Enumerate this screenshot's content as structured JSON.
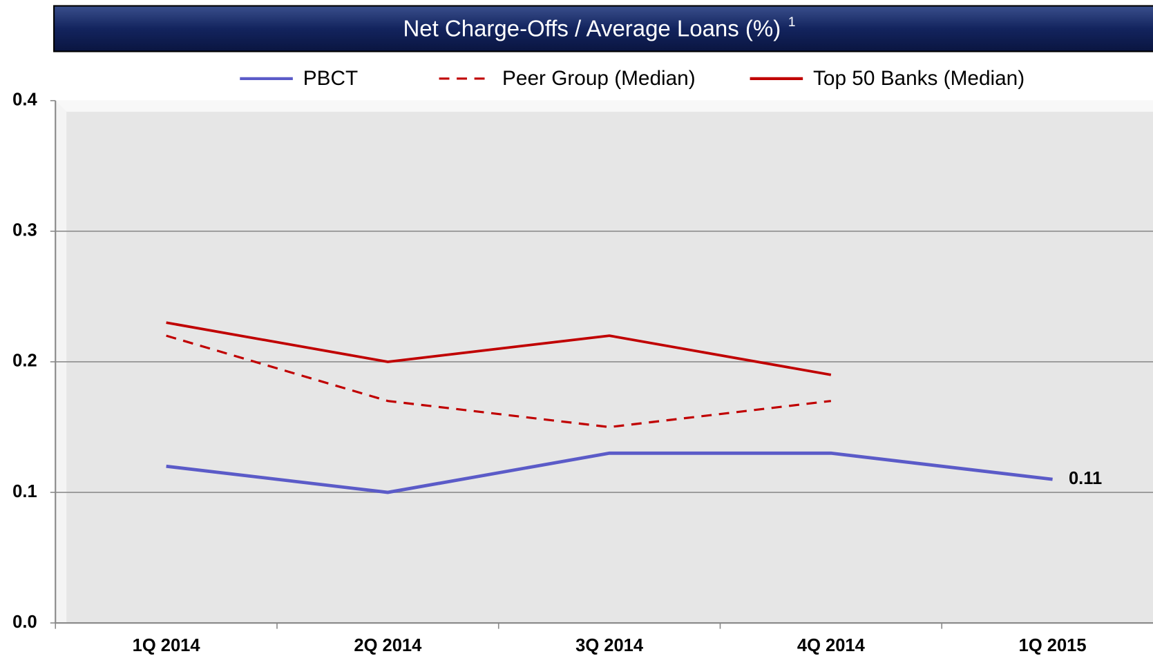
{
  "chart_data": {
    "type": "line",
    "title": "Net Charge-Offs / Average Loans (%)",
    "title_footnote": "1",
    "categories": [
      "1Q 2014",
      "2Q 2014",
      "3Q 2014",
      "4Q 2014",
      "1Q 2015"
    ],
    "series": [
      {
        "name": "PBCT",
        "color": "#5b5bc8",
        "values": [
          0.12,
          0.1,
          0.13,
          0.13,
          0.11
        ],
        "dashed": false
      },
      {
        "name": "Peer Group (Median)",
        "color": "#c00000",
        "values": [
          0.22,
          0.17,
          0.15,
          0.17,
          null
        ],
        "dashed": true
      },
      {
        "name": "Top 50 Banks (Median)",
        "color": "#c00000",
        "values": [
          0.23,
          0.2,
          0.22,
          0.19,
          null
        ],
        "dashed": false
      }
    ],
    "data_labels": [
      "chart_data.series.0.values.4"
    ],
    "ylim": [
      0,
      0.4
    ],
    "yticks": [
      {
        "value": 0,
        "label": "0.0"
      },
      0.1,
      0.2,
      0.3,
      0.4
    ],
    "grid": true,
    "legend": "top"
  }
}
